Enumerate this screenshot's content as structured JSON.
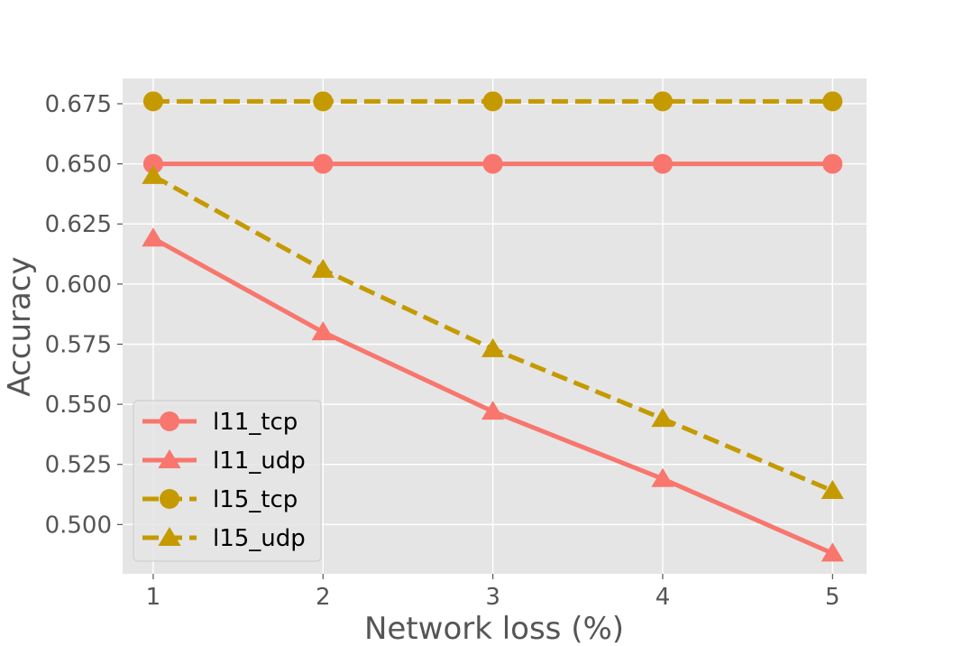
{
  "chart_data": {
    "type": "line",
    "title": "",
    "xlabel": "Network loss (%)",
    "ylabel": "Accuracy",
    "x": [
      1,
      2,
      3,
      4,
      5
    ],
    "xticks": [
      "1",
      "2",
      "3",
      "4",
      "5"
    ],
    "yticks": [
      "0.500",
      "0.525",
      "0.550",
      "0.575",
      "0.600",
      "0.625",
      "0.650",
      "0.675"
    ],
    "xlim": [
      0.82,
      5.2
    ],
    "ylim": [
      0.4795,
      0.6855
    ],
    "grid": true,
    "legend_position": "lower-left",
    "series": [
      {
        "name": "l11_tcp",
        "values": [
          0.65,
          0.65,
          0.65,
          0.65,
          0.65
        ],
        "color": "#f8766d",
        "marker": "circle",
        "dash": "solid"
      },
      {
        "name": "l11_udp",
        "values": [
          0.619,
          0.58,
          0.547,
          0.519,
          0.488
        ],
        "color": "#f8766d",
        "marker": "triangle",
        "dash": "solid"
      },
      {
        "name": "l15_tcp",
        "values": [
          0.676,
          0.676,
          0.676,
          0.676,
          0.676
        ],
        "color": "#c49a00",
        "marker": "circle",
        "dash": "dashed"
      },
      {
        "name": "l15_udp",
        "values": [
          0.645,
          0.606,
          0.573,
          0.544,
          0.514
        ],
        "color": "#c49a00",
        "marker": "triangle",
        "dash": "dashed"
      }
    ]
  }
}
